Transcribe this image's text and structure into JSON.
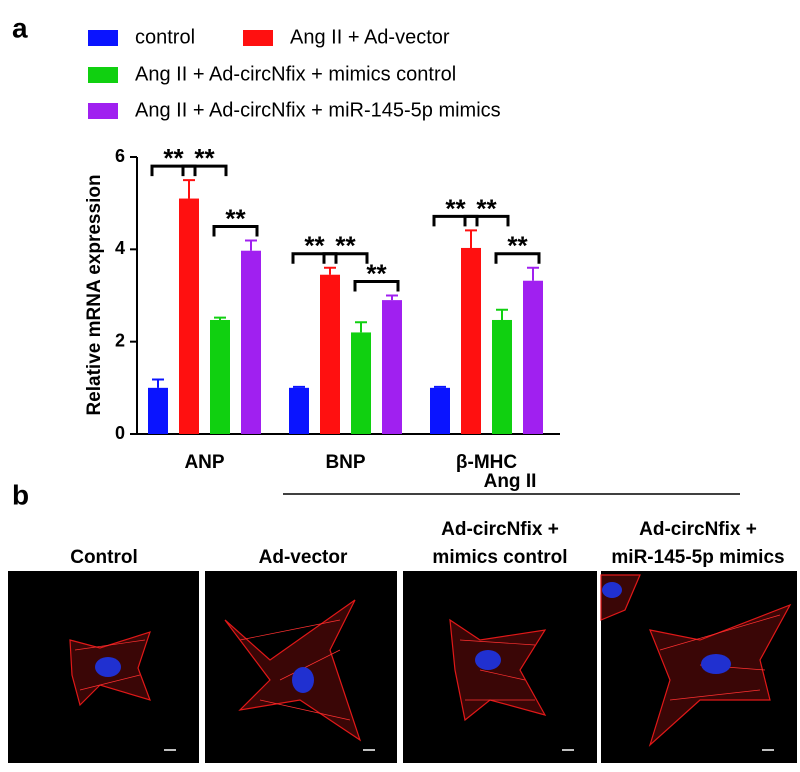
{
  "chart_data": {
    "type": "bar",
    "panel_label": "a",
    "y_label": "Relative mRNA expression",
    "categories": [
      "ANP",
      "BNP",
      "β-MHC"
    ],
    "series": [
      {
        "name": "control",
        "color": "#0a14ff",
        "values": [
          1.0,
          1.0,
          1.0
        ],
        "errors": [
          0.18,
          0.02,
          0.02
        ]
      },
      {
        "name": "Ang II + Ad-vector",
        "color": "#ff1010",
        "values": [
          5.1,
          3.45,
          4.03
        ],
        "errors": [
          0.4,
          0.15,
          0.38
        ]
      },
      {
        "name": "Ang II + Ad-circNfix + mimics control",
        "color": "#10d010",
        "values": [
          2.47,
          2.2,
          2.47
        ],
        "errors": [
          0.05,
          0.22,
          0.22
        ]
      },
      {
        "name": "Ang II + Ad-circNfix + miR-145-5p mimics",
        "color": "#a020f0",
        "values": [
          3.97,
          2.9,
          3.32
        ],
        "errors": [
          0.22,
          0.1,
          0.28
        ]
      }
    ],
    "significance": [
      [
        "**",
        "**",
        "**"
      ],
      [
        "**",
        "**",
        "**"
      ],
      [
        "**",
        "**",
        "**"
      ]
    ],
    "ylim": [
      0,
      6
    ],
    "yticks": [
      0,
      2,
      4,
      6
    ]
  },
  "panel_b": {
    "label": "b",
    "group_label": "Ang II",
    "columns": [
      [
        "Control"
      ],
      [
        "Ad-vector"
      ],
      [
        "Ad-circNfix +",
        "mimics control"
      ],
      [
        "Ad-circNfix +",
        "miR-145-5p mimics"
      ]
    ]
  }
}
